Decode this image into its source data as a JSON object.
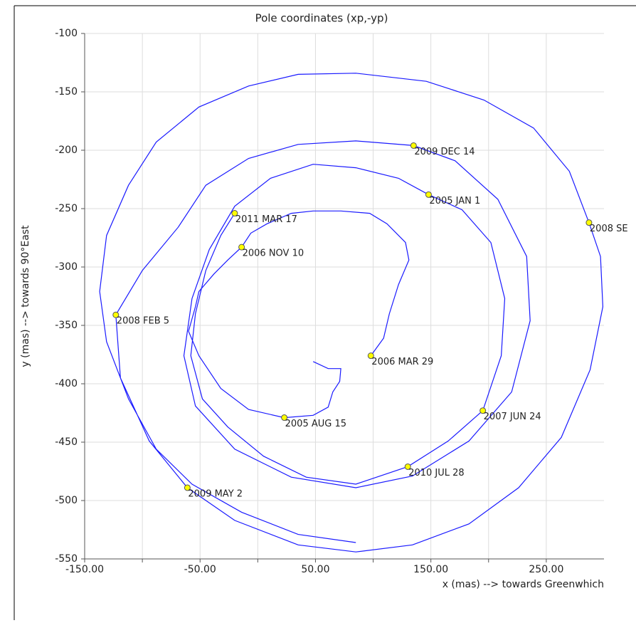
{
  "chart_data": {
    "type": "line",
    "title": "Pole coordinates (xp,-yp)",
    "xlabel": "x (mas) --> towards Greenwhich",
    "ylabel": "y (mas) --> towards 90°East",
    "xlim": [
      -150,
      300
    ],
    "ylim": [
      -550,
      -100
    ],
    "xticks": [
      {
        "value": -150,
        "label": "-150.00"
      },
      {
        "value": -50,
        "label": "-50.00"
      },
      {
        "value": 50,
        "label": "50.00"
      },
      {
        "value": 150,
        "label": "150.00"
      },
      {
        "value": 250,
        "label": "250.00"
      }
    ],
    "xminor": [
      -100,
      0,
      100,
      200
    ],
    "yticks": [
      -100,
      -150,
      -200,
      -250,
      -300,
      -350,
      -400,
      -450,
      -500,
      -550
    ],
    "grid": true,
    "series": [
      {
        "color": "#1a1aff",
        "x": [
          48,
          61,
          72,
          71,
          65,
          61,
          48,
          23,
          -8,
          -32,
          -51,
          -60,
          -54,
          -51,
          -38,
          -26,
          -14,
          -6,
          8,
          29,
          48,
          72,
          97,
          112,
          128,
          131,
          122,
          114,
          109,
          98,
          null,
          -20,
          -32,
          -45,
          -54,
          -58,
          -48,
          -26,
          5,
          42,
          85,
          130,
          165,
          195,
          211,
          214,
          202,
          177,
          148,
          122,
          85,
          48,
          11,
          -20,
          -42,
          -57,
          -64,
          -54,
          -20,
          29,
          85,
          134,
          183,
          220,
          236,
          233,
          208,
          171,
          135,
          85,
          35,
          -8,
          -45,
          -69,
          -100,
          -123,
          -119,
          -94,
          -61,
          -20,
          35,
          85,
          134,
          183,
          226,
          263,
          288,
          299,
          297,
          287,
          270,
          239,
          196,
          146,
          85,
          35,
          -8,
          -51,
          -88,
          -112,
          -131,
          -137,
          -131,
          -112,
          -88,
          -57,
          -14,
          35,
          85
        ],
        "values": [
          -381,
          -387,
          -387,
          -398,
          -407,
          -420,
          -427,
          -429,
          -422,
          -404,
          -376,
          -355,
          -334,
          -321,
          -306,
          -294,
          -283,
          -271,
          -263,
          -254,
          -252,
          -252,
          -254,
          -263,
          -279,
          -294,
          -315,
          -340,
          -361,
          -376,
          null,
          -254,
          -273,
          -303,
          -340,
          -376,
          -413,
          -437,
          -462,
          -480,
          -486,
          -471,
          -449,
          -423,
          -376,
          -327,
          -279,
          -251,
          -238,
          -224,
          -215,
          -212,
          -224,
          -248,
          -285,
          -327,
          -376,
          -419,
          -456,
          -480,
          -489,
          -479,
          -449,
          -407,
          -346,
          -291,
          -242,
          -209,
          -196,
          -192,
          -195,
          -207,
          -230,
          -266,
          -303,
          -341,
          -395,
          -449,
          -489,
          -517,
          -538,
          -544,
          -538,
          -520,
          -489,
          -446,
          -388,
          -334,
          -291,
          -262,
          -218,
          -181,
          -157,
          -141,
          -134,
          -135,
          -145,
          -163,
          -193,
          -230,
          -273,
          -321,
          -364,
          -413,
          -456,
          -486,
          -510,
          -529,
          -536
        ]
      },
      {
        "color": "#ffff00",
        "x": [
          148,
          23,
          98,
          -14,
          195,
          -123,
          287,
          -61,
          135,
          130,
          -20
        ],
        "values": [
          -238,
          -429,
          -376,
          -283,
          -423,
          -341,
          -262,
          -489,
          -196,
          -471,
          -254
        ],
        "point_labels": [
          "2005 JAN 1",
          "2005 AUG 15",
          "2006 MAR 29",
          "2006 NOV 10",
          "2007 JUN 24",
          "2008 FEB 5",
          "2008 SE",
          "2009 MAY 2",
          "2009 DEC 14",
          "2010 JUL 28",
          "2011 MAR 17"
        ]
      }
    ]
  }
}
